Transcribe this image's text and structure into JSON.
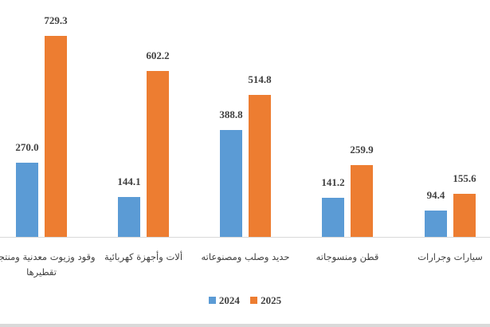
{
  "chart_data": {
    "type": "bar",
    "categories": [
      "وقود وزيوت معدنية ومنتجات تقطيرها",
      "ألات وأجهزة كهربائية",
      "حديد وصلب ومصنوعاته",
      "قطن ومنسوجاته",
      "سيارات وجرارات"
    ],
    "series": [
      {
        "name": "2024",
        "color": "#5b9bd5",
        "values": [
          270.0,
          144.1,
          388.8,
          141.2,
          94.4
        ],
        "labels": [
          "270.0",
          "144.1",
          "388.8",
          "141.2",
          "94.4"
        ]
      },
      {
        "name": "2025",
        "color": "#ed7d31",
        "values": [
          729.3,
          602.2,
          514.8,
          259.9,
          155.6
        ],
        "labels": [
          "729.3",
          "602.2",
          "514.8",
          "259.9",
          "155.6"
        ]
      }
    ],
    "title": "",
    "xlabel": "",
    "ylabel": "",
    "ylim": [
      0,
      729.3
    ],
    "grid": false,
    "legend": "bottom"
  }
}
